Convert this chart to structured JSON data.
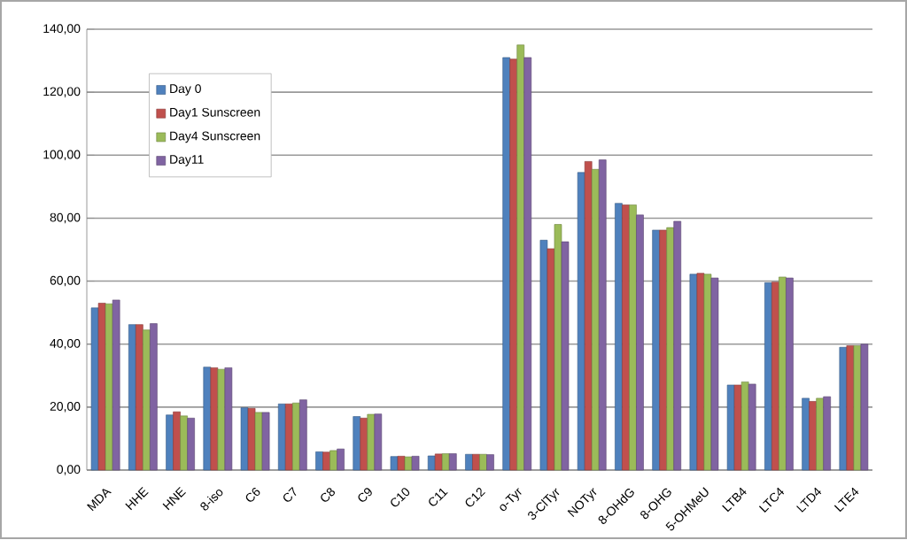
{
  "chart_data": {
    "type": "bar",
    "categories": [
      "MDA",
      "HHE",
      "HNE",
      "8-iso",
      "C6",
      "C7",
      "C8",
      "C9",
      "C10",
      "C11",
      "C12",
      "o-Tyr",
      "3-ClTyr",
      "NOTyr",
      "8-OHdG",
      "8-OHG",
      "5-OHMeU",
      "LTB4",
      "LTC4",
      "LTD4",
      "LTE4"
    ],
    "series": [
      {
        "name": "Day 0",
        "color": "#4f81bd",
        "values": [
          51.5,
          46.2,
          17.5,
          32.7,
          19.8,
          21,
          5.8,
          17,
          4.3,
          4.5,
          5,
          131,
          73,
          94.5,
          84.7,
          76.2,
          62.2,
          27,
          59.5,
          22.8,
          39
        ]
      },
      {
        "name": "Day1 Sunscreen",
        "color": "#c0504d",
        "values": [
          53,
          46.2,
          18.5,
          32.5,
          19.6,
          21,
          5.7,
          16.5,
          4.4,
          5.1,
          5,
          130.5,
          70.3,
          98,
          84.2,
          76.2,
          62.5,
          27,
          59.7,
          21.8,
          39.5
        ]
      },
      {
        "name": "Day4 Sunscreen",
        "color": "#9bbb59",
        "values": [
          52.8,
          44.5,
          17.2,
          32,
          18.3,
          21.3,
          6.2,
          17.7,
          4.2,
          5.2,
          5,
          135,
          78,
          95.5,
          84.2,
          77,
          62.2,
          28,
          61.3,
          22.8,
          39.5
        ]
      },
      {
        "name": "Day11",
        "color": "#8064a2",
        "values": [
          54,
          46.5,
          16.5,
          32.5,
          18.3,
          22.3,
          6.7,
          17.8,
          4.4,
          5.2,
          4.9,
          131,
          72.5,
          98.5,
          81,
          79,
          61,
          27.3,
          61,
          23.3,
          40
        ]
      }
    ],
    "ylim": [
      0,
      140
    ],
    "yticks": [
      {
        "value": 0,
        "label": "0,00"
      },
      {
        "value": 20,
        "label": "20,00"
      },
      {
        "value": 40,
        "label": "40,00"
      },
      {
        "value": 60,
        "label": "60,00"
      },
      {
        "value": 80,
        "label": "80,00"
      },
      {
        "value": 100,
        "label": "100,00"
      },
      {
        "value": 120,
        "label": "120,00"
      },
      {
        "value": 140,
        "label": "140,00"
      }
    ],
    "grid": "y",
    "legend": "top left"
  }
}
